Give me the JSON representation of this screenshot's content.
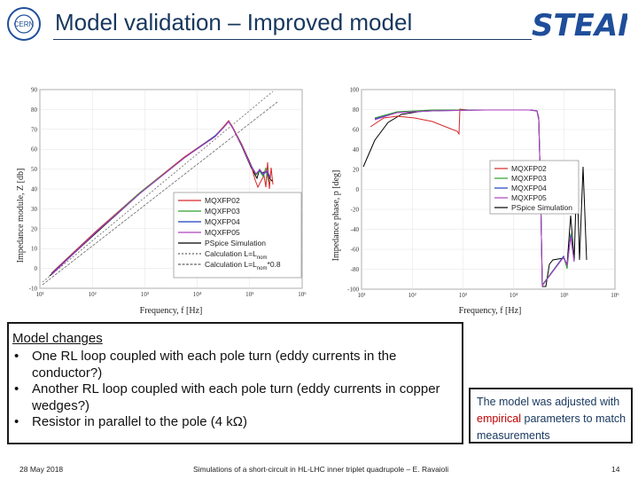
{
  "slide": {
    "title": "Model validation – Improved model",
    "logo_left_text": "CERN",
    "logo_right_text": "STEAM"
  },
  "plot_left": {
    "ylabel": "Impedance module, Z [db]",
    "xlabel": "Frequency, f [Hz]",
    "yticks": [
      "90",
      "80",
      "70",
      "60",
      "50",
      "40",
      "30",
      "20",
      "10",
      "0",
      "-10"
    ],
    "xticks": [
      "10¹",
      "10²",
      "10³",
      "10⁴",
      "10⁵",
      "10⁶"
    ],
    "legend": [
      "MQXFP02",
      "MQXFP03",
      "MQXFP04",
      "MQXFP05",
      "PSpice Simulation",
      "Calculation L=L",
      "Calculation L=L",
      "*0.8"
    ],
    "legend_subscripts": [
      "nom",
      "nom"
    ]
  },
  "plot_right": {
    "ylabel": "Impedance phase, p [deg]",
    "xlabel": "Frequency, f [Hz]",
    "yticks": [
      "100",
      "80",
      "60",
      "40",
      "20",
      "0",
      "-20",
      "-40",
      "-60",
      "-80",
      "-100"
    ],
    "xticks": [
      "10¹",
      "10²",
      "10³",
      "10⁴",
      "10⁵",
      "10⁶"
    ],
    "legend": [
      "MQXFP02",
      "MQXFP03",
      "MQXFP04",
      "MQXFP05",
      "PSpice Simulation"
    ]
  },
  "changes": {
    "heading": "Model changes",
    "items": [
      "One RL loop coupled with each pole turn (eddy currents in the conductor?)",
      "Another RL loop coupled with each pole turn (eddy currents in copper wedges?)",
      "Resistor in parallel to the pole (4 kΩ)"
    ]
  },
  "note": {
    "part1": "The model was adjusted with ",
    "highlight": "empirical",
    "part2": " parameters to match measurements"
  },
  "footer": {
    "date": "28 May 2018",
    "center": "Simulations of a short-circuit in HL-LHC inner triplet quadrupole – E. Ravaioli",
    "page": "14"
  },
  "colors": {
    "title": "#17375e",
    "mqxfp02": "#d62728",
    "mqxfp03": "#2ca02c",
    "mqxfp04": "#1f3fbf",
    "mqxfp05": "#b040c0",
    "pspice": "#000000",
    "highlight": "#c00000"
  }
}
